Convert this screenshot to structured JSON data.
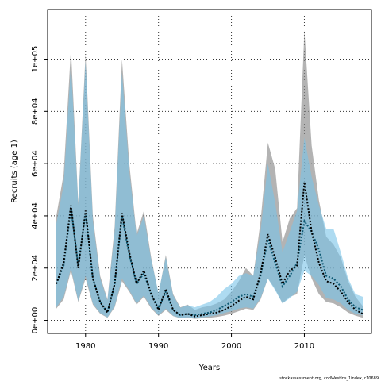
{
  "chart_data": {
    "type": "line",
    "xlabel": "Years",
    "ylabel": "Recruits (age 1)",
    "footer": "stockassessment.org, codWestIns_1index, r10689",
    "xlim": [
      1974.8,
      2019.2
    ],
    "ylim": [
      -5000,
      119000
    ],
    "x_ticks": [
      1980,
      1990,
      2000,
      2010
    ],
    "y_ticks": [
      0,
      20000,
      40000,
      60000,
      80000,
      100000
    ],
    "y_tick_labels": [
      "0e+00",
      "2e+04",
      "4e+04",
      "6e+04",
      "8e+04",
      "1e+05"
    ],
    "grid": true,
    "x": [
      1976,
      1977,
      1978,
      1979,
      1980,
      1981,
      1982,
      1983,
      1984,
      1985,
      1986,
      1987,
      1988,
      1989,
      1990,
      1991,
      1992,
      1993,
      1994,
      1995,
      1996,
      1997,
      1998,
      1999,
      2000,
      2001,
      2002,
      2003,
      2004,
      2005,
      2006,
      2007,
      2008,
      2009,
      2010,
      2011,
      2012,
      2013,
      2014,
      2015,
      2016,
      2017,
      2018
    ],
    "series": [
      {
        "color": "#000000",
        "line_style": "dotted",
        "values": [
          14000,
          22000,
          44000,
          20000,
          42000,
          16000,
          7000,
          3000,
          14000,
          41000,
          26000,
          14000,
          19000,
          10000,
          4000,
          12000,
          4000,
          2000,
          2500,
          1500,
          2000,
          2500,
          3000,
          4000,
          5500,
          7500,
          9000,
          8000,
          18000,
          33000,
          24000,
          14000,
          19000,
          21000,
          53000,
          34000,
          22000,
          15000,
          14000,
          11000,
          7000,
          4000,
          2500
        ],
        "lower": [
          4500,
          8000,
          19000,
          7000,
          16000,
          6000,
          2500,
          1000,
          5000,
          15000,
          11000,
          6000,
          9000,
          4500,
          1700,
          4000,
          1600,
          800,
          1000,
          600,
          800,
          1000,
          1300,
          1800,
          2500,
          3500,
          4500,
          4000,
          8000,
          16000,
          12000,
          6500,
          9000,
          10000,
          25000,
          16000,
          10000,
          7000,
          6500,
          5000,
          3000,
          1800,
          1000
        ],
        "upper": [
          40000,
          56000,
          104000,
          45000,
          102000,
          40000,
          17000,
          8000,
          36000,
          100000,
          60000,
          33000,
          42000,
          24000,
          10000,
          25000,
          10000,
          5000,
          6000,
          4000,
          5000,
          5500,
          6500,
          8000,
          11000,
          15000,
          20000,
          17000,
          38000,
          68000,
          58000,
          30000,
          39000,
          43000,
          111000,
          67000,
          46000,
          32000,
          29000,
          24000,
          15000,
          9000,
          5500
        ]
      },
      {
        "color": "#0f5a74",
        "line_style": "dotted",
        "values": [
          14000,
          21000,
          43000,
          21000,
          41000,
          16000,
          7000,
          3000,
          14000,
          40000,
          25000,
          14000,
          18000,
          10000,
          4500,
          11000,
          4000,
          2000,
          2500,
          2000,
          2500,
          3000,
          4000,
          5500,
          7000,
          9000,
          10000,
          9000,
          17000,
          31000,
          22000,
          13000,
          17000,
          22000,
          38000,
          34000,
          27000,
          17000,
          16000,
          13000,
          8000,
          5000,
          4000
        ],
        "lower": [
          5000,
          9000,
          20000,
          7500,
          17000,
          6500,
          2800,
          1100,
          5500,
          16000,
          11500,
          6500,
          9500,
          5000,
          2000,
          4500,
          1800,
          900,
          1200,
          900,
          1200,
          1500,
          2000,
          2800,
          3500,
          4500,
          5000,
          4500,
          8500,
          16000,
          11500,
          6500,
          8500,
          11000,
          19000,
          17000,
          13500,
          8500,
          8000,
          6500,
          4000,
          2500,
          2000
        ],
        "upper": [
          37000,
          52000,
          98000,
          44000,
          99000,
          38000,
          16000,
          7500,
          34000,
          95000,
          57000,
          32000,
          40000,
          23000,
          10500,
          24000,
          9500,
          4800,
          5800,
          5000,
          6000,
          7000,
          9000,
          12000,
          14000,
          17000,
          18000,
          17000,
          34000,
          60000,
          45000,
          26000,
          34000,
          42000,
          70000,
          55000,
          44000,
          35000,
          35000,
          26000,
          16000,
          10000,
          9000
        ]
      }
    ],
    "colors": {
      "band_grey": "#8a8a8a",
      "band_blue": "#78c3e8",
      "line_black": "#000000",
      "line_blue": "#0f5a74",
      "grid": "#333333"
    }
  }
}
